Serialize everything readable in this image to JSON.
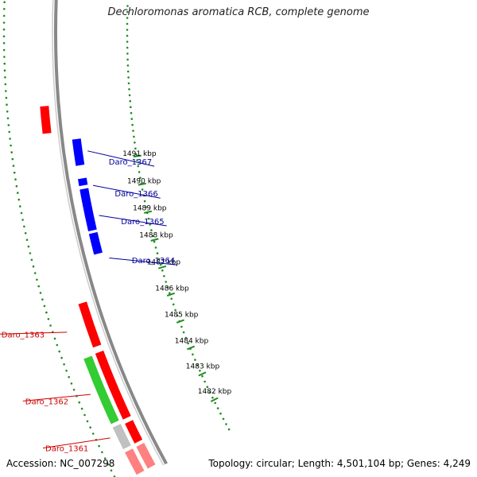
{
  "title": "Dechloromonas aromatica RCB, complete genome",
  "accession": "Accession: NC_007298",
  "topology": "Topology: circular; Length: 4,501,104 bp; Genes: 4,249",
  "colors": {
    "forward_gene": "#ff0000",
    "reverse_gene": "#0000ff",
    "rna_gene": "#33cc33",
    "other_gene": "#c0c0c0",
    "backbone": "#888888",
    "ruler": "#228b22",
    "forward_label": "#cc0000",
    "reverse_label": "#000099"
  },
  "ruler": {
    "ticks": [
      {
        "label": "1482 kbp"
      },
      {
        "label": "1483 kbp"
      },
      {
        "label": "1484 kbp"
      },
      {
        "label": "1485 kbp"
      },
      {
        "label": "1486 kbp"
      },
      {
        "label": "1487 kbp"
      },
      {
        "label": "1488 kbp"
      },
      {
        "label": "1489 kbp"
      },
      {
        "label": "1490 kbp"
      },
      {
        "label": "1491 kbp"
      }
    ]
  },
  "genes": {
    "forward": [
      {
        "name": "Daro_1361"
      },
      {
        "name": "Daro_1362"
      },
      {
        "name": "Daro_1363"
      }
    ],
    "reverse": [
      {
        "name": "Daro_1364"
      },
      {
        "name": "Daro_1365"
      },
      {
        "name": "Daro_1366"
      },
      {
        "name": "Daro_1367"
      }
    ]
  }
}
